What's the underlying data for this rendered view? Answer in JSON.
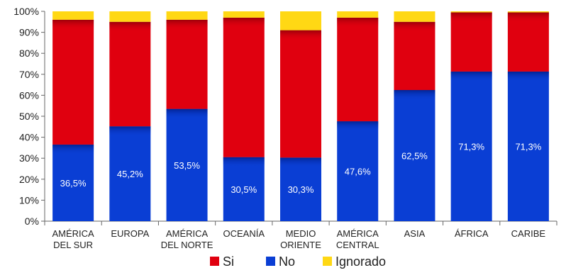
{
  "chart_data": {
    "type": "bar",
    "stacked": true,
    "categories": [
      [
        "AMÉRICA",
        "DEL SUR"
      ],
      [
        "EUROPA"
      ],
      [
        "AMÉRICA",
        "DEL NORTE"
      ],
      [
        "OCEANÍA"
      ],
      [
        "MEDIO",
        "ORIENTE"
      ],
      [
        "AMÉRICA",
        "CENTRAL"
      ],
      [
        "ASIA"
      ],
      [
        "ÁFRICA"
      ],
      [
        "CARIBE"
      ]
    ],
    "series": [
      {
        "name": "No",
        "color": "#0a3ed4",
        "values": [
          36.5,
          45.2,
          53.5,
          30.5,
          30.3,
          47.6,
          62.5,
          71.3,
          71.3
        ]
      },
      {
        "name": "Si",
        "color": "#e0000f",
        "values": [
          59.5,
          49.8,
          42.5,
          66.5,
          60.7,
          49.4,
          32.5,
          28.2,
          28.2
        ]
      },
      {
        "name": "Ignorado",
        "color": "#ffd814",
        "values": [
          4.0,
          5.0,
          4.0,
          3.0,
          9.0,
          3.0,
          5.0,
          0.5,
          0.5
        ]
      }
    ],
    "data_labels": [
      "36,5%",
      "45,2%",
      "53,5%",
      "30,5%",
      "30,3%",
      "47,6%",
      "62,5%",
      "71,3%",
      "71,3%"
    ],
    "y_ticks": [
      "0%",
      "10%",
      "20%",
      "30%",
      "40%",
      "50%",
      "60%",
      "70%",
      "80%",
      "90%",
      "100%"
    ],
    "ylim": [
      0,
      100
    ],
    "grid": false,
    "legend": {
      "position": "bottom",
      "entries": [
        {
          "label": "Si",
          "color": "#e0000f"
        },
        {
          "label": "No",
          "color": "#0a3ed4"
        },
        {
          "label": "Ignorado",
          "color": "#ffd814"
        }
      ]
    }
  }
}
